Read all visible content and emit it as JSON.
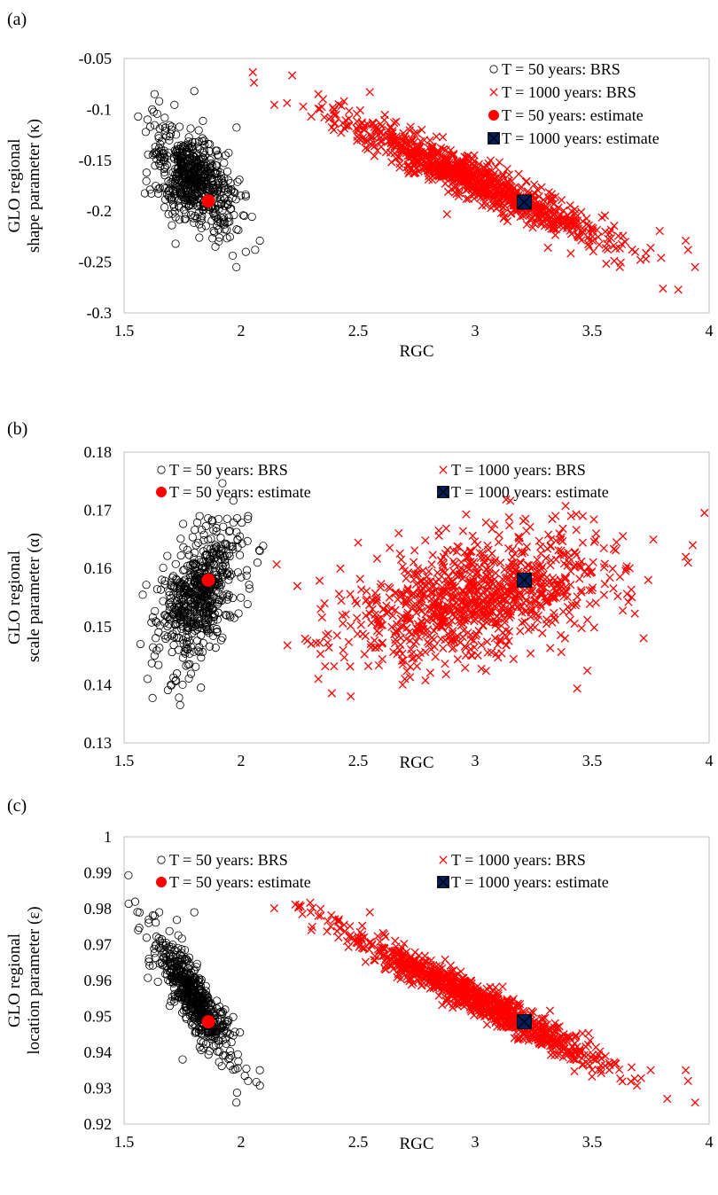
{
  "chart_data": [
    {
      "panel_label": "(a)",
      "type": "scatter",
      "xlabel": "RGC",
      "ylabel": [
        "GLO regional",
        "shape parameter (κ)"
      ],
      "xlim": [
        1.5,
        4
      ],
      "ylim": [
        -0.3,
        -0.05
      ],
      "xticks": [
        1.5,
        2,
        2.5,
        3,
        3.5,
        4
      ],
      "xtick_labels": [
        "1.5",
        "2",
        "2.5",
        "3",
        "3.5",
        "4"
      ],
      "yticks": [
        -0.3,
        -0.25,
        -0.2,
        -0.15,
        -0.1,
        -0.05
      ],
      "ytick_labels": [
        "-0.3",
        "-0.25",
        "-0.2",
        "-0.15",
        "-0.1",
        "-0.05"
      ],
      "grid": false,
      "legend_position": "top-right",
      "legend_layout": "vertical",
      "series": [
        {
          "name": "T = 50 years: BRS",
          "marker": "circle-open",
          "color": "#000000",
          "cloud": {
            "n": 600,
            "mean_x": 1.8,
            "mean_y": -0.17,
            "sd_x": 0.085,
            "sd_y": 0.024,
            "corr": -0.45
          },
          "x": [
            1.56,
            1.6,
            1.63,
            1.65,
            1.8,
            1.62,
            1.69,
            1.72,
            1.98,
            2.02,
            2.06,
            2.08
          ],
          "y": [
            -0.107,
            -0.11,
            -0.085,
            -0.092,
            -0.082,
            -0.1,
            -0.203,
            -0.232,
            -0.255,
            -0.24,
            -0.238,
            -0.229
          ]
        },
        {
          "name": "T = 1000 years: BRS",
          "marker": "x",
          "color": "#ff0000",
          "cloud": {
            "n": 950,
            "mean_x": 3.0,
            "mean_y": -0.17,
            "sd_x": 0.28,
            "sd_y": 0.031,
            "corr": -0.95
          },
          "x": [
            2.3,
            2.33,
            2.35,
            2.44,
            2.55,
            3.9,
            3.91,
            3.94,
            3.75,
            3.73,
            2.88
          ],
          "y": [
            -0.107,
            -0.085,
            -0.09,
            -0.092,
            -0.083,
            -0.229,
            -0.238,
            -0.255,
            -0.236,
            -0.247,
            -0.203
          ]
        },
        {
          "name": "T = 50 years: estimate",
          "marker": "filled-circle",
          "color": "#ff0000",
          "x": [
            1.86
          ],
          "y": [
            -0.19
          ]
        },
        {
          "name": "T = 1000 years: estimate",
          "marker": "filled-square-x",
          "color": "#002060",
          "x": [
            3.21
          ],
          "y": [
            -0.191
          ]
        }
      ]
    },
    {
      "panel_label": "(b)",
      "type": "scatter",
      "xlabel": "RGC",
      "ylabel": [
        "GLO regional",
        "scale parameter (α)"
      ],
      "xlim": [
        1.5,
        4
      ],
      "ylim": [
        0.13,
        0.18
      ],
      "xticks": [
        1.5,
        2,
        2.5,
        3,
        3.5,
        4
      ],
      "xtick_labels": [
        "1.5",
        "2",
        "2.5",
        "3",
        "3.5",
        "4"
      ],
      "yticks": [
        0.13,
        0.14,
        0.15,
        0.16,
        0.17,
        0.18
      ],
      "ytick_labels": [
        "0.13",
        "0.14",
        "0.15",
        "0.16",
        "0.17",
        "0.18"
      ],
      "grid": false,
      "legend_position": "top",
      "legend_layout": "two-column",
      "series": [
        {
          "name": "T = 50 years: BRS",
          "marker": "circle-open",
          "color": "#000000",
          "cloud": {
            "n": 600,
            "mean_x": 1.82,
            "mean_y": 0.155,
            "sd_x": 0.085,
            "sd_y": 0.0055,
            "corr": 0.5
          },
          "x": [
            1.57,
            1.6,
            1.63,
            1.7,
            1.75,
            2.07,
            2.03,
            2.08
          ],
          "y": [
            0.147,
            0.141,
            0.145,
            0.14,
            0.14,
            0.161,
            0.169,
            0.163
          ]
        },
        {
          "name": "T = 1000 years: BRS",
          "marker": "x",
          "color": "#ff0000",
          "cloud": {
            "n": 950,
            "mean_x": 3.0,
            "mean_y": 0.155,
            "sd_x": 0.28,
            "sd_y": 0.0055,
            "corr": 0.42
          },
          "x": [
            2.3,
            2.33,
            2.34,
            2.69,
            2.7,
            3.9,
            3.91,
            3.93,
            3.74,
            3.72,
            3.46,
            3.41
          ],
          "y": [
            0.147,
            0.141,
            0.153,
            0.14,
            0.141,
            0.162,
            0.161,
            0.164,
            0.158,
            0.148,
            0.169,
            0.169
          ]
        },
        {
          "name": "T = 50 years: estimate",
          "marker": "filled-circle",
          "color": "#ff0000",
          "x": [
            1.86
          ],
          "y": [
            0.158
          ]
        },
        {
          "name": "T = 1000 years: estimate",
          "marker": "filled-square-x",
          "color": "#002060",
          "x": [
            3.21
          ],
          "y": [
            0.158
          ]
        }
      ]
    },
    {
      "panel_label": "(c)",
      "type": "scatter",
      "xlabel": "RGC",
      "ylabel": [
        "GLO regional",
        "location parameter (ε)"
      ],
      "xlim": [
        1.5,
        4
      ],
      "ylim": [
        0.92,
        1
      ],
      "xticks": [
        1.5,
        2,
        2.5,
        3,
        3.5,
        4
      ],
      "xtick_labels": [
        "1.5",
        "2",
        "2.5",
        "3",
        "3.5",
        "4"
      ],
      "yticks": [
        0.92,
        0.93,
        0.94,
        0.95,
        0.96,
        0.97,
        0.98,
        0.99,
        1
      ],
      "ytick_labels": [
        "0.92",
        "0.93",
        "0.94",
        "0.95",
        "0.96",
        "0.97",
        "0.98",
        "0.99",
        "1"
      ],
      "grid": false,
      "legend_position": "top",
      "legend_layout": "two-column",
      "series": [
        {
          "name": "T = 50 years: BRS",
          "marker": "circle-open",
          "color": "#000000",
          "cloud": {
            "n": 600,
            "mean_x": 1.8,
            "mean_y": 0.955,
            "sd_x": 0.085,
            "sd_y": 0.0085,
            "corr": -0.85
          },
          "x": [
            1.56,
            1.63,
            1.65,
            1.8,
            1.98,
            2.03,
            2.08,
            1.75
          ],
          "y": [
            0.974,
            0.978,
            0.979,
            0.979,
            0.926,
            0.932,
            0.935,
            0.938
          ]
        },
        {
          "name": "T = 1000 years: BRS",
          "marker": "x",
          "color": "#ff0000",
          "cloud": {
            "n": 950,
            "mean_x": 3.0,
            "mean_y": 0.955,
            "sd_x": 0.28,
            "sd_y": 0.0095,
            "corr": -0.97
          },
          "x": [
            2.3,
            2.33,
            2.34,
            2.55,
            3.9,
            3.91,
            3.94,
            3.75
          ],
          "y": [
            0.974,
            0.978,
            0.978,
            0.979,
            0.935,
            0.932,
            0.926,
            0.935
          ]
        },
        {
          "name": "T = 50 years: estimate",
          "marker": "filled-circle",
          "color": "#ff0000",
          "x": [
            1.86
          ],
          "y": [
            0.9485
          ]
        },
        {
          "name": "T = 1000 years: estimate",
          "marker": "filled-square-x",
          "color": "#002060",
          "x": [
            3.21
          ],
          "y": [
            0.9485
          ]
        }
      ]
    }
  ]
}
